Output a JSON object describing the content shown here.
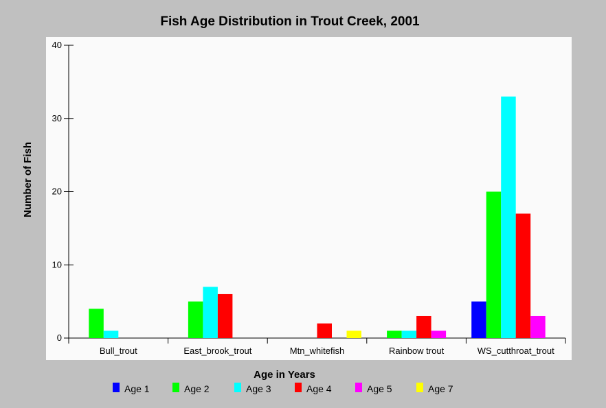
{
  "chart_data": {
    "type": "bar",
    "title": "Fish Age Distribution in Trout Creek, 2001",
    "xlabel": "Age in Years",
    "ylabel": "Number of Fish",
    "ylim": [
      0,
      40
    ],
    "yticks": [
      "0",
      "10",
      "20",
      "30",
      "40"
    ],
    "grid": false,
    "legend_position": "bottom",
    "categories": [
      "Bull_trout",
      "East_brook_trout",
      "Mtn_whitefish",
      "Rainbow trout",
      "WS_cutthroat_trout"
    ],
    "series": [
      {
        "name": "Age 1",
        "color": "#0000ff",
        "values": [
          0,
          0,
          0,
          0,
          5
        ]
      },
      {
        "name": "Age 2",
        "color": "#00ff00",
        "values": [
          4,
          5,
          0,
          1,
          20
        ]
      },
      {
        "name": "Age 3",
        "color": "#00ffff",
        "values": [
          1,
          7,
          0,
          1,
          33
        ]
      },
      {
        "name": "Age 4",
        "color": "#ff0000",
        "values": [
          0,
          6,
          2,
          3,
          17
        ]
      },
      {
        "name": "Age 5",
        "color": "#ff00ff",
        "values": [
          0,
          0,
          0,
          1,
          3
        ]
      },
      {
        "name": "Age 7",
        "color": "#ffff00",
        "values": [
          0,
          0,
          1,
          0,
          0
        ]
      }
    ]
  },
  "colors": {
    "background": "#c0c0c0",
    "plot_background": "#fafafa"
  }
}
